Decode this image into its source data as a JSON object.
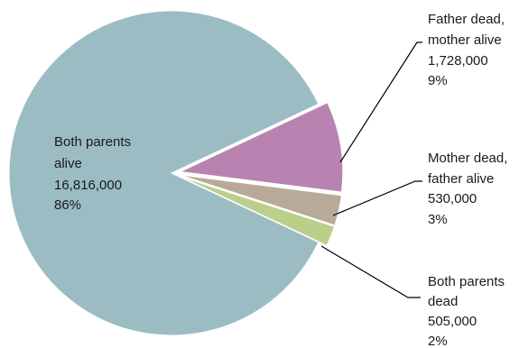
{
  "chart_data": {
    "type": "pie",
    "title": "",
    "slices": [
      {
        "label_lines": [
          "Both parents",
          "alive"
        ],
        "count": "16,816,000",
        "percent": "86%",
        "value": 86,
        "color": "#9cbcc4",
        "exploded": false
      },
      {
        "label_lines": [
          "Father dead,",
          "mother alive"
        ],
        "count": "1,728,000",
        "percent": "9%",
        "value": 9,
        "color": "#b883b0",
        "exploded": true
      },
      {
        "label_lines": [
          "Mother dead,",
          "father alive"
        ],
        "count": "530,000",
        "percent": "3%",
        "value": 3,
        "color": "#b8aa98",
        "exploded": true
      },
      {
        "label_lines": [
          "Both parents",
          "dead"
        ],
        "count": "505,000",
        "percent": "2%",
        "value": 2,
        "color": "#bccf8a",
        "exploded": true
      }
    ]
  }
}
